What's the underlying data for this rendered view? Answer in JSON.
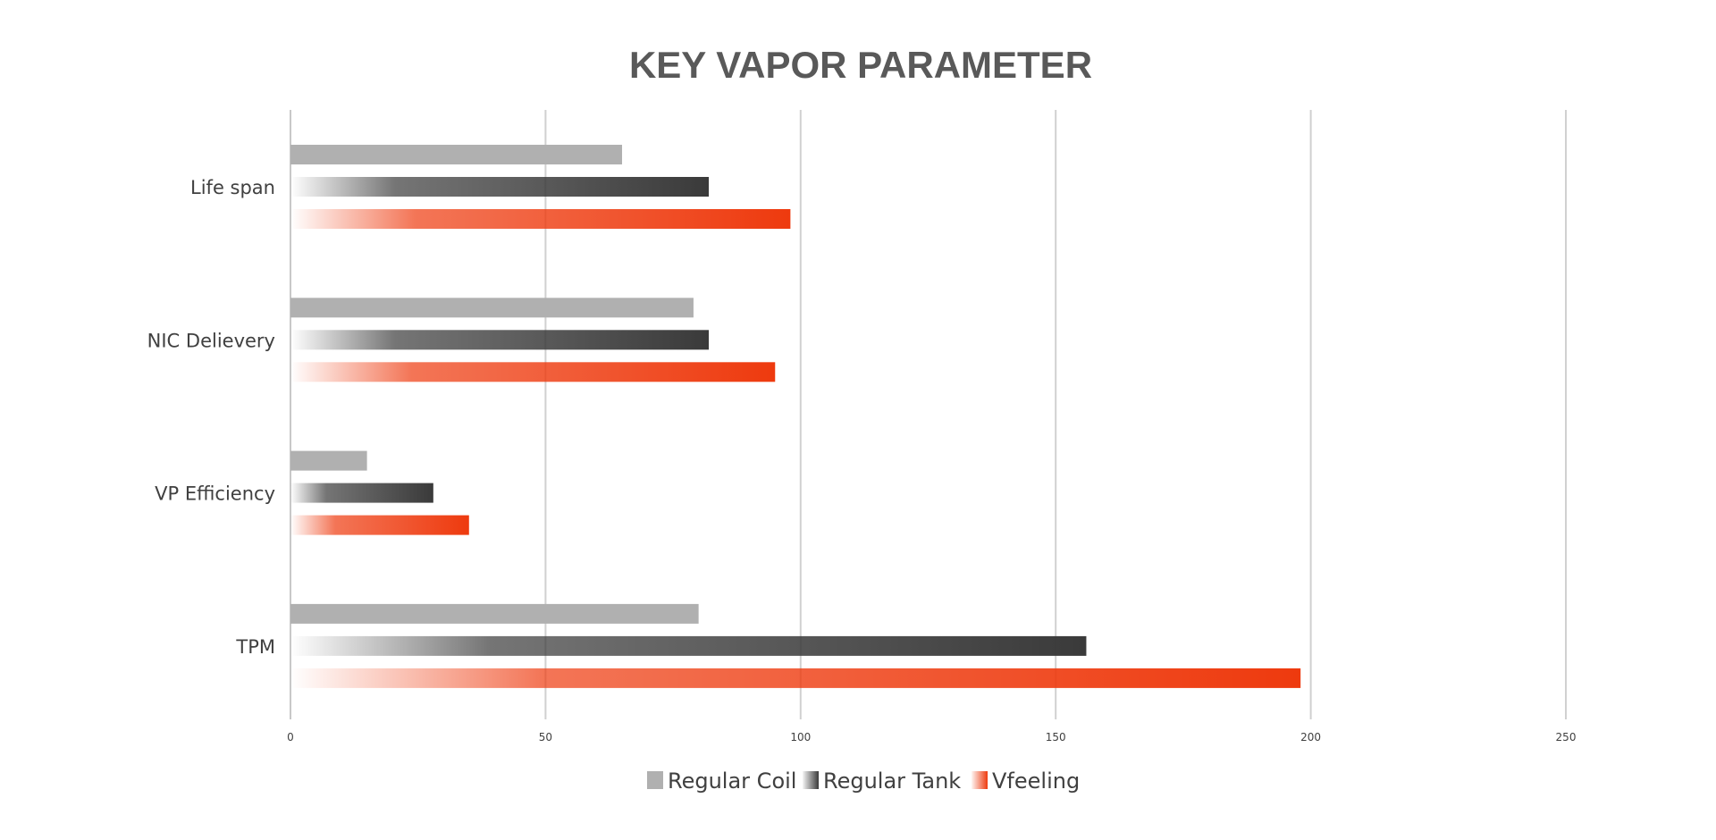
{
  "chart_data": {
    "type": "bar",
    "orientation": "horizontal",
    "title": "KEY VAPOR PARAMETER",
    "xlabel": "",
    "ylabel": "",
    "categories": [
      "Life span",
      "NIC Delievery",
      "VP Efficiency",
      "TPM"
    ],
    "xlim": [
      0,
      250
    ],
    "ticks": [
      0,
      50,
      100,
      150,
      200,
      250
    ],
    "tick_labels": [
      "0",
      "50",
      "100",
      "150",
      "200",
      "250"
    ],
    "grid": "vertical",
    "legend_position": "bottom",
    "series": [
      {
        "name": "Regular Coil",
        "values": [
          65,
          79,
          15,
          80
        ],
        "color": "#b0b0b0",
        "fill": "solid"
      },
      {
        "name": "Regular Tank",
        "values": [
          82,
          82,
          28,
          156
        ],
        "color": "#3a3a3a",
        "fill": "gradient"
      },
      {
        "name": "Vfeeling",
        "values": [
          98,
          95,
          35,
          198
        ],
        "color": "#ee3a0e",
        "fill": "gradient"
      }
    ]
  }
}
